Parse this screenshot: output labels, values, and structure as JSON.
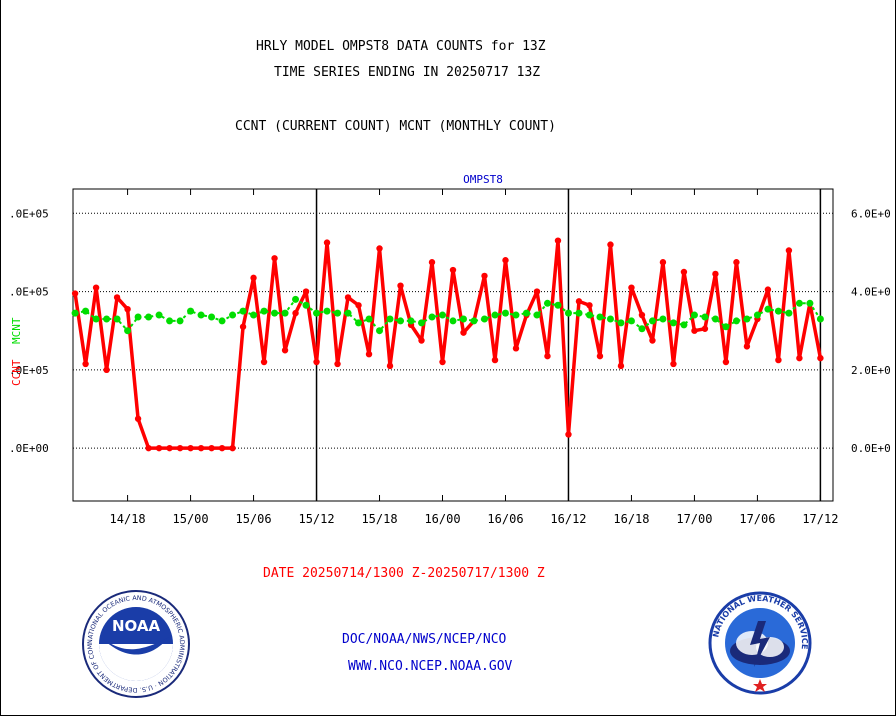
{
  "header": {
    "title_line1": "HRLY MODEL OMPST8 DATA COUNTS for 13Z",
    "title_line2": "TIME SERIES ENDING IN 20250717 13Z",
    "subtitle": "CCNT (CURRENT COUNT) MCNT (MONTHLY COUNT)"
  },
  "footer": {
    "date_range": "DATE 20250714/1300 Z-20250717/1300 Z",
    "org": "DOC/NOAA/NWS/NCEP/NCO",
    "url": "WWW.NCO.NCEP.NOAA.GOV",
    "noaa_logo_text": "NOAA",
    "noaa_ring_text": "NATIONAL OCEANIC AND ATMOSPHERIC ADMINISTRATION · U.S. DEPARTMENT OF COMMERCE ·",
    "nws_ring_text": "NATIONAL WEATHER SERVICE"
  },
  "colors": {
    "ccnt": "#ff0000",
    "mcnt": "#00dd00",
    "plot_label": "#0000cc",
    "footer_text": "#0000cc",
    "date_text": "#ff0000"
  },
  "chart_data": {
    "type": "line",
    "title": "OMPST8",
    "ylabel_left_ccnt": "CCNT",
    "ylabel_left_mcnt": "MCNT",
    "left_ticks": [
      {
        "value": 600000,
        "label": ".0E+05"
      },
      {
        "value": 400000,
        "label": ".0E+05"
      },
      {
        "value": 200000,
        "label": ".0E+05"
      },
      {
        "value": 0,
        "label": ".0E+00"
      }
    ],
    "right_ticks": [
      {
        "value": 600000,
        "label": "6.0E+0"
      },
      {
        "value": 400000,
        "label": "4.0E+0"
      },
      {
        "value": 200000,
        "label": "2.0E+0"
      },
      {
        "value": 0,
        "label": "0.0E+0"
      }
    ],
    "ylim": [
      -135000,
      662000
    ],
    "xlim": [
      -0.2,
      72.2
    ],
    "x_ticks": [
      {
        "x": 5,
        "label": "14/18"
      },
      {
        "x": 11,
        "label": "15/00"
      },
      {
        "x": 17,
        "label": "15/06"
      },
      {
        "x": 23,
        "label": "15/12"
      },
      {
        "x": 29,
        "label": "15/18"
      },
      {
        "x": 35,
        "label": "16/00"
      },
      {
        "x": 41,
        "label": "16/06"
      },
      {
        "x": 47,
        "label": "16/12"
      },
      {
        "x": 53,
        "label": "16/18"
      },
      {
        "x": 59,
        "label": "17/00"
      },
      {
        "x": 65,
        "label": "17/06"
      },
      {
        "x": 71,
        "label": "17/12"
      }
    ],
    "day_lines": [
      23,
      47,
      71
    ],
    "gridlines_y": [
      600000,
      400000,
      200000,
      0
    ],
    "series": [
      {
        "name": "CCNT",
        "values": [
          395000,
          215000,
          410000,
          200000,
          385000,
          355000,
          75000,
          0,
          0,
          0,
          0,
          0,
          0,
          0,
          0,
          0,
          310000,
          435000,
          220000,
          485000,
          250000,
          345000,
          400000,
          220000,
          525000,
          215000,
          385000,
          365000,
          240000,
          510000,
          210000,
          415000,
          315000,
          275000,
          475000,
          220000,
          455000,
          295000,
          325000,
          440000,
          225000,
          480000,
          255000,
          340000,
          400000,
          235000,
          530000,
          35000,
          375000,
          365000,
          235000,
          520000,
          210000,
          410000,
          340000,
          275000,
          475000,
          215000,
          450000,
          300000,
          305000,
          445000,
          220000,
          475000,
          260000,
          330000,
          405000,
          225000,
          505000,
          230000,
          370000,
          230000
        ]
      },
      {
        "name": "MCNT",
        "values": [
          345000,
          350000,
          330000,
          330000,
          330000,
          300000,
          335000,
          335000,
          340000,
          325000,
          325000,
          350000,
          340000,
          335000,
          325000,
          340000,
          350000,
          340000,
          350000,
          345000,
          345000,
          380000,
          365000,
          345000,
          350000,
          345000,
          345000,
          320000,
          330000,
          300000,
          330000,
          325000,
          325000,
          320000,
          335000,
          340000,
          325000,
          330000,
          325000,
          330000,
          340000,
          345000,
          340000,
          345000,
          340000,
          370000,
          365000,
          345000,
          345000,
          340000,
          335000,
          330000,
          320000,
          325000,
          305000,
          325000,
          330000,
          320000,
          315000,
          340000,
          335000,
          330000,
          310000,
          325000,
          330000,
          340000,
          355000,
          350000,
          345000,
          370000,
          370000,
          330000
        ]
      }
    ]
  }
}
